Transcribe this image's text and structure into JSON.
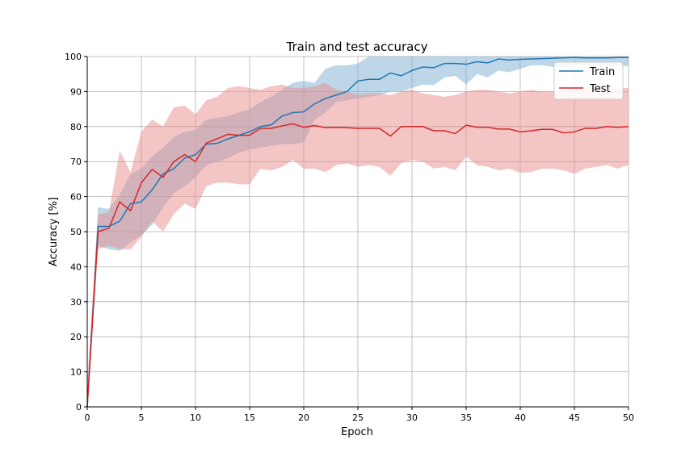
{
  "chart_data": {
    "type": "line",
    "title": "Train and test accuracy",
    "xlabel": "Epoch",
    "ylabel": "Accuracy [%]",
    "xlim": [
      0,
      50
    ],
    "ylim": [
      0,
      100
    ],
    "xticks": [
      0,
      5,
      10,
      15,
      20,
      25,
      30,
      35,
      40,
      45,
      50
    ],
    "yticks": [
      0,
      10,
      20,
      30,
      40,
      50,
      60,
      70,
      80,
      90,
      100
    ],
    "grid": true,
    "legend_position": "top-right",
    "x": [
      0,
      1,
      2,
      3,
      4,
      5,
      6,
      7,
      8,
      9,
      10,
      11,
      12,
      13,
      14,
      15,
      16,
      17,
      18,
      19,
      20,
      21,
      22,
      23,
      24,
      25,
      26,
      27,
      28,
      29,
      30,
      31,
      32,
      33,
      34,
      35,
      36,
      37,
      38,
      39,
      40,
      41,
      42,
      43,
      44,
      45,
      46,
      47,
      48,
      49,
      50
    ],
    "series": [
      {
        "name": "Train",
        "color": "#1f77b4",
        "band_color": "#7bafd4",
        "values": [
          0,
          51.5,
          51.5,
          53,
          58,
          58.5,
          62,
          66.5,
          68,
          71,
          72,
          75,
          75.2,
          76.5,
          77.5,
          78.5,
          80,
          80.5,
          83,
          84,
          84.2,
          86.5,
          88,
          89,
          90,
          93,
          93.5,
          93.5,
          95.3,
          94.5,
          96,
          97,
          96.8,
          98,
          98,
          97.8,
          98.5,
          98.2,
          99.3,
          99,
          99.2,
          99.3,
          99.4,
          99.5,
          99.6,
          99.7,
          99.6,
          99.6,
          99.6,
          99.7,
          99.7
        ],
        "lower": [
          0,
          46,
          45,
          44.5,
          47,
          49,
          52,
          57,
          61,
          63,
          65.5,
          69,
          70,
          71,
          72.5,
          73.5,
          74,
          74.5,
          75,
          75,
          75.5,
          82,
          84,
          87,
          87.5,
          88,
          88.5,
          89,
          90,
          90,
          91,
          92,
          91.8,
          94,
          94.5,
          92,
          95,
          94,
          96,
          95.5,
          96.5,
          97.5,
          97.5,
          97,
          97,
          97.5,
          97.5,
          97.3,
          97.2,
          97.3,
          97.3
        ],
        "upper": [
          5,
          57,
          56.5,
          60.5,
          66.5,
          68,
          71.5,
          74,
          77,
          78.5,
          79,
          82,
          82.5,
          83,
          84,
          85,
          87,
          88.5,
          90.5,
          92.5,
          93,
          92.5,
          96.5,
          97.5,
          97.5,
          98,
          100,
          100,
          100,
          100,
          100,
          100,
          100,
          100,
          100,
          100,
          100,
          100,
          100,
          100,
          100,
          100,
          100,
          100,
          100,
          100,
          100,
          100,
          100,
          100,
          100
        ]
      },
      {
        "name": "Test",
        "color": "#d62728",
        "band_color": "#e88b8c",
        "values": [
          0,
          50,
          51,
          58.5,
          56,
          64,
          67.8,
          65.5,
          70,
          72,
          70,
          75.3,
          76.5,
          77.8,
          77.5,
          77.5,
          79.5,
          79.5,
          80.2,
          80.8,
          79.8,
          80.3,
          79.7,
          79.8,
          79.7,
          79.5,
          79.5,
          79.5,
          77.3,
          80,
          80,
          80,
          78.8,
          78.8,
          78,
          80.4,
          79.8,
          79.8,
          79.3,
          79.3,
          78.5,
          78.8,
          79.2,
          79.2,
          78.2,
          78.5,
          79.5,
          79.5,
          80,
          79.8,
          80
        ],
        "lower": [
          0,
          45,
          46,
          45,
          45,
          48.5,
          53,
          50,
          55,
          58,
          56.5,
          63,
          64,
          64,
          63.5,
          63.5,
          68,
          67.5,
          68.5,
          70.5,
          68,
          68,
          67,
          69,
          69.5,
          68.5,
          69,
          68.5,
          66,
          69.5,
          70.5,
          70,
          68,
          68.5,
          67.5,
          71.5,
          69,
          68.5,
          67.5,
          68,
          66.8,
          67,
          68,
          68,
          67.5,
          66.5,
          68,
          68.5,
          69,
          68,
          69
        ],
        "upper": [
          7,
          55,
          55.5,
          73,
          67,
          78.5,
          82,
          80,
          85.5,
          86,
          83.5,
          87.5,
          88.5,
          91,
          91.5,
          91,
          90.5,
          91.5,
          92,
          91,
          91,
          91.5,
          92.5,
          90.5,
          90,
          89,
          89.5,
          89.5,
          89,
          90,
          90.5,
          89.5,
          89,
          88.5,
          89,
          90,
          90.5,
          90.5,
          90,
          89.5,
          90,
          90.5,
          90,
          90,
          90,
          91,
          91.5,
          91.5,
          91,
          91,
          91
        ]
      }
    ]
  }
}
